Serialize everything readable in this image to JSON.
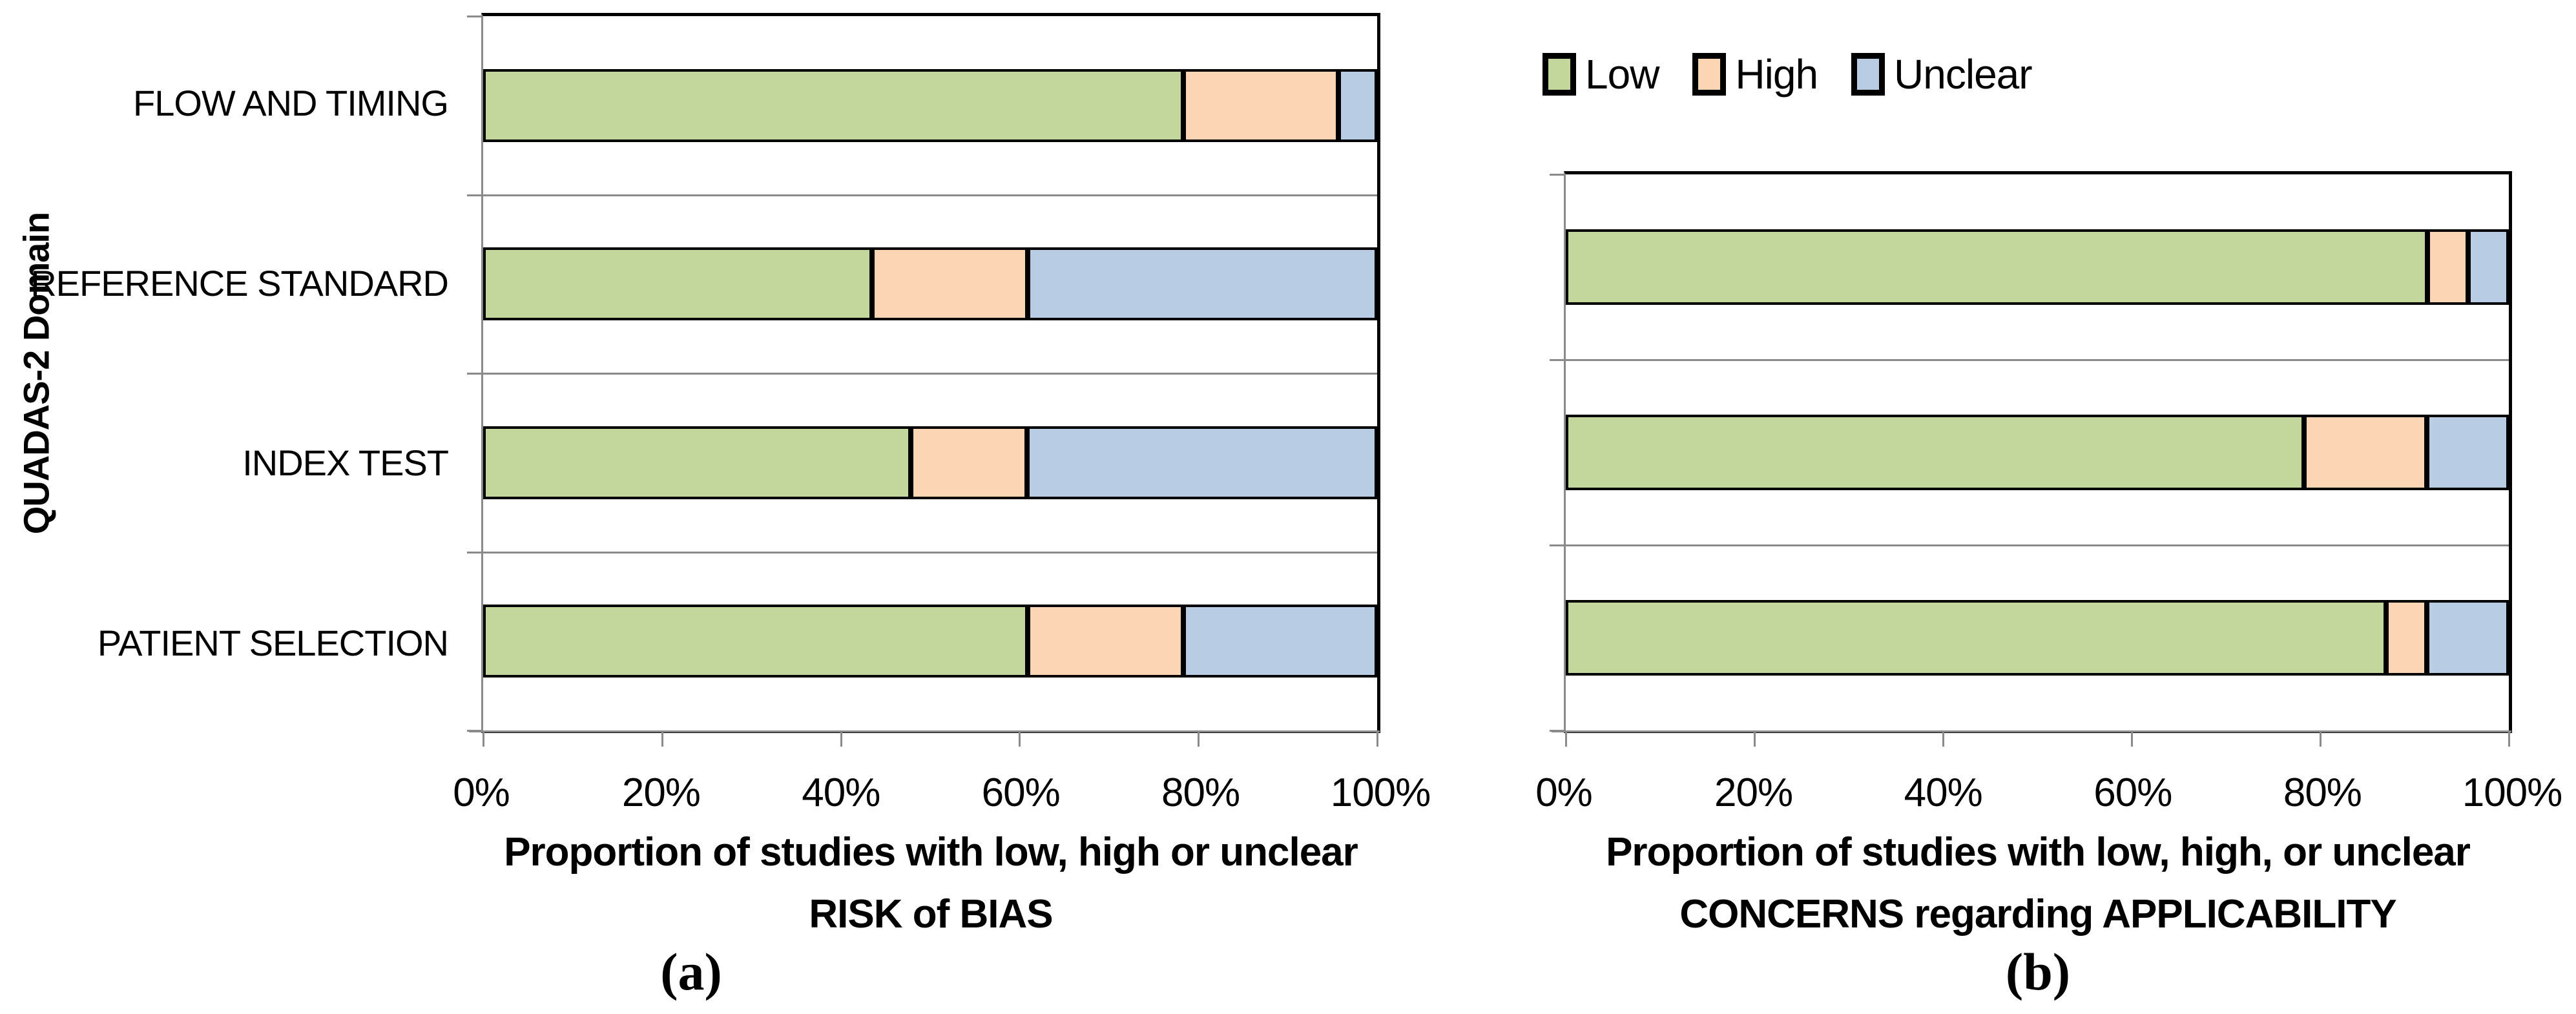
{
  "legend": {
    "items": [
      {
        "label": "Low",
        "color": "#C3D69B"
      },
      {
        "label": "High",
        "color": "#FCD5B4"
      },
      {
        "label": "Unclear",
        "color": "#B8CCE4"
      }
    ]
  },
  "panel_a": {
    "caption": "(a)",
    "y_axis_title": "QUADAS-2 Domain",
    "x_axis_title_line1": "Proportion of studies with low, high or unclear",
    "x_axis_title_line2": "RISK of BIAS"
  },
  "panel_b": {
    "caption": "(b)",
    "x_axis_title_line1": "Proportion of studies with low, high, or unclear",
    "x_axis_title_line2": "CONCERNS regarding APPLICABILITY"
  },
  "chart_data": [
    {
      "type": "bar",
      "orientation": "horizontal",
      "stacked": true,
      "panel": "a",
      "ylabel": "QUADAS-2 Domain",
      "xlabel": "Proportion of studies with low, high or unclear RISK of BIAS",
      "categories": [
        "FLOW AND TIMING",
        "REFERENCE STANDARD",
        "INDEX TEST",
        "PATIENT SELECTION"
      ],
      "category_labels_shown": true,
      "series": [
        {
          "name": "Low",
          "color": "#C3D69B",
          "values": [
            78.3,
            43.5,
            47.8,
            60.9
          ]
        },
        {
          "name": "High",
          "color": "#FCD5B4",
          "values": [
            17.4,
            17.4,
            13.0,
            17.4
          ]
        },
        {
          "name": "Unclear",
          "color": "#B8CCE4",
          "values": [
            4.3,
            39.1,
            39.1,
            21.7
          ]
        }
      ],
      "x_ticks": [
        "0%",
        "20%",
        "40%",
        "60%",
        "80%",
        "100%"
      ],
      "xlim": [
        0,
        100
      ],
      "grid": "category-separators",
      "legend_position": "none"
    },
    {
      "type": "bar",
      "orientation": "horizontal",
      "stacked": true,
      "panel": "b",
      "xlabel": "Proportion of studies with low, high, or unclear CONCERNS regarding APPLICABILITY",
      "categories": [
        "",
        "",
        ""
      ],
      "category_labels_shown": false,
      "series": [
        {
          "name": "Low",
          "color": "#C3D69B",
          "values": [
            91.3,
            78.3,
            87.0
          ]
        },
        {
          "name": "High",
          "color": "#FCD5B4",
          "values": [
            4.3,
            13.0,
            4.3
          ]
        },
        {
          "name": "Unclear",
          "color": "#B8CCE4",
          "values": [
            4.3,
            8.7,
            8.7
          ]
        }
      ],
      "x_ticks": [
        "0%",
        "20%",
        "40%",
        "60%",
        "80%",
        "100%"
      ],
      "xlim": [
        0,
        100
      ],
      "grid": "category-separators",
      "legend_position": "top-left-of-plot"
    }
  ]
}
